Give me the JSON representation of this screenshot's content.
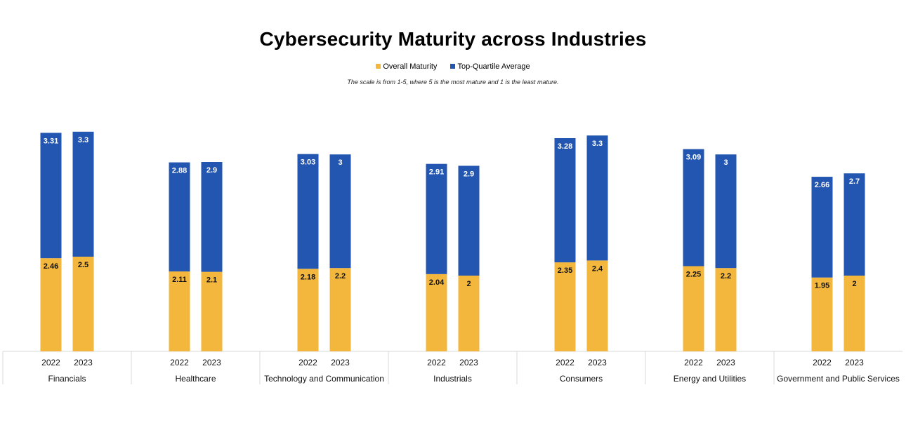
{
  "chart_data": {
    "type": "bar",
    "stacked": true,
    "title": "Cybersecurity Maturity across Industries",
    "subtitle": "The scale is from 1-5, where 5 is the most mature and 1 is the least mature.",
    "xlabel": "",
    "ylabel": "",
    "grid": false,
    "legend_position": "top-center",
    "groups": [
      "Financials",
      "Healthcare",
      "Technology and Communication",
      "Industrials",
      "Consumers",
      "Energy and Utilities",
      "Government and Public Services"
    ],
    "sub_categories": [
      "2022",
      "2023"
    ],
    "series": [
      {
        "name": "Overall Maturity",
        "color": "#F3B73E",
        "label_color": "#111111",
        "values": [
          [
            2.46,
            2.5
          ],
          [
            2.11,
            2.1
          ],
          [
            2.18,
            2.2
          ],
          [
            2.04,
            2
          ],
          [
            2.35,
            2.4
          ],
          [
            2.25,
            2.2
          ],
          [
            1.95,
            2
          ]
        ]
      },
      {
        "name": "Top-Quartile Average",
        "color": "#2356B0",
        "label_color": "#FFFFFF",
        "values": [
          [
            3.31,
            3.3
          ],
          [
            2.88,
            2.9
          ],
          [
            3.03,
            3
          ],
          [
            2.91,
            2.9
          ],
          [
            3.28,
            3.3
          ],
          [
            3.09,
            3
          ],
          [
            2.66,
            2.7
          ]
        ]
      }
    ],
    "ylim": [
      0,
      5.8
    ]
  }
}
